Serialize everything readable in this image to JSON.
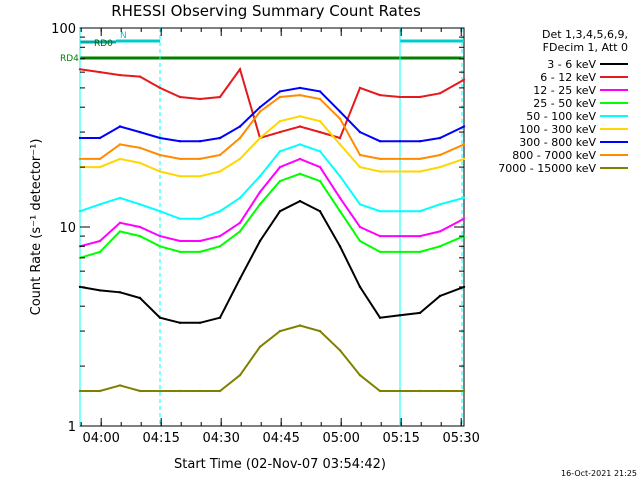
{
  "chart_data": {
    "type": "line",
    "title": "RHESSI Observing Summary Count Rates",
    "xlabel": "Start Time (02-Nov-07 03:54:42)",
    "ylabel": "Count Rate (s⁻¹ detector⁻¹)",
    "y_scale": "log",
    "ylim": [
      1,
      100
    ],
    "xlim_minutes": [
      0,
      96
    ],
    "xtick_labels": [
      "04:00",
      "04:15",
      "04:30",
      "04:45",
      "05:00",
      "05:15",
      "05:30"
    ],
    "xtick_minutes": [
      5.3,
      20.3,
      35.3,
      50.3,
      65.3,
      80.3,
      95.3
    ],
    "ytick_labels": [
      "1",
      "10",
      "100"
    ],
    "ytick_values": [
      1,
      10,
      100
    ],
    "legend_header": [
      "Det 1,3,4,5,6,9,",
      "FDecim 1, Att 0"
    ],
    "series": [
      {
        "name": "3 - 6 keV",
        "color": "#000000",
        "values": [
          5.0,
          4.8,
          4.7,
          4.4,
          3.5,
          3.3,
          3.3,
          3.5,
          5.5,
          8.5,
          12.0,
          13.5,
          12.0,
          8.0,
          5.0,
          3.5,
          3.6,
          3.7,
          4.5,
          5.0
        ]
      },
      {
        "name": "6 - 12 keV",
        "color": "#e41a1c",
        "values": [
          62,
          60,
          58,
          57,
          50,
          45,
          44,
          45,
          62,
          28,
          30,
          32,
          30,
          28,
          50,
          46,
          45,
          45,
          47,
          55
        ]
      },
      {
        "name": "12 - 25 keV",
        "color": "#ff00ff",
        "values": [
          8.0,
          8.5,
          10.5,
          10.0,
          9.0,
          8.5,
          8.5,
          9.0,
          10.5,
          15.0,
          20.0,
          22.0,
          20.0,
          14.0,
          10.0,
          9.0,
          9.0,
          9.0,
          9.5,
          11.0
        ]
      },
      {
        "name": "25 - 50 keV",
        "color": "#00ff00",
        "values": [
          7.0,
          7.5,
          9.5,
          9.0,
          8.0,
          7.5,
          7.5,
          8.0,
          9.5,
          13.0,
          17.0,
          18.5,
          17.0,
          12.0,
          8.5,
          7.5,
          7.5,
          7.5,
          8.0,
          9.0
        ]
      },
      {
        "name": "50 - 100 keV",
        "color": "#00ffff",
        "values": [
          12,
          13,
          14,
          13,
          12,
          11,
          11,
          12,
          14,
          18,
          24,
          26,
          24,
          18,
          13,
          12,
          12,
          12,
          13,
          14
        ]
      },
      {
        "name": "100 - 300 keV",
        "color": "#ffd700",
        "values": [
          20,
          20,
          22,
          21,
          19,
          18,
          18,
          19,
          22,
          28,
          34,
          36,
          34,
          26,
          20,
          19,
          19,
          19,
          20,
          22
        ]
      },
      {
        "name": "300 - 800 keV",
        "color": "#0000ff",
        "values": [
          28,
          28,
          32,
          30,
          28,
          27,
          27,
          28,
          32,
          40,
          48,
          50,
          48,
          38,
          30,
          27,
          27,
          27,
          28,
          32
        ]
      },
      {
        "name": "800 - 7000 keV",
        "color": "#ff8c00",
        "values": [
          22,
          22,
          26,
          25,
          23,
          22,
          22,
          23,
          28,
          38,
          45,
          46,
          44,
          35,
          23,
          22,
          22,
          22,
          23,
          26
        ]
      },
      {
        "name": "7000 - 15000 keV",
        "color": "#808000",
        "values": [
          1.5,
          1.5,
          1.6,
          1.5,
          1.5,
          1.5,
          1.5,
          1.5,
          1.8,
          2.5,
          3.0,
          3.2,
          3.0,
          2.4,
          1.8,
          1.5,
          1.5,
          1.5,
          1.5,
          1.5
        ]
      }
    ],
    "series_x_minutes": [
      0,
      5,
      10,
      15,
      20,
      25,
      30,
      35,
      40,
      45,
      50,
      55,
      60,
      65,
      70,
      75,
      80,
      85,
      90,
      96
    ],
    "status_bars": [
      {
        "label": "RD0",
        "color": "#00aaaa",
        "segments_minutes": [
          [
            0,
            9
          ]
        ]
      },
      {
        "label": "N",
        "color": "#00cccc",
        "segments_minutes": [
          [
            9,
            20
          ],
          [
            80,
            96
          ]
        ]
      },
      {
        "label": "RD4",
        "color": "#008000",
        "segments_minutes": [
          [
            0,
            12
          ],
          [
            12,
            53
          ],
          [
            53,
            77
          ],
          [
            77,
            96
          ]
        ]
      }
    ],
    "vlines_minutes": [
      [
        0,
        "#00ffff",
        "solid"
      ],
      [
        20,
        "#00ffff",
        "dashed"
      ],
      [
        80,
        "#00ffff",
        "solid"
      ],
      [
        95.5,
        "#00ffff",
        "dashed"
      ]
    ],
    "footer_timestamp": "16-Oct-2021 21:25"
  }
}
